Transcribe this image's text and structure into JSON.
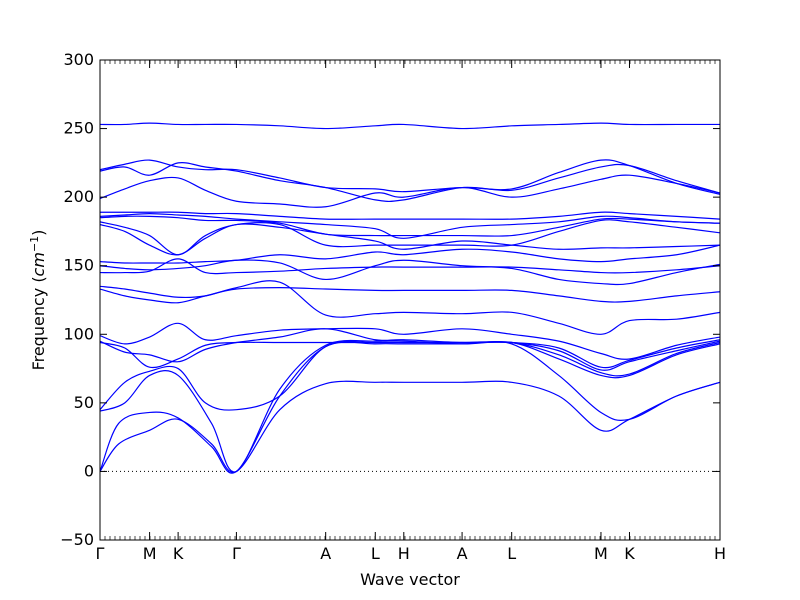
{
  "chart_data": {
    "type": "line",
    "xlabel": "Wave vector",
    "ylabel": "Frequency",
    "ylabel_unit": "cm",
    "ylabel_unit_exp": "−1",
    "ylim": [
      -50,
      300
    ],
    "yticks": [
      -50,
      0,
      50,
      100,
      150,
      200,
      250,
      300
    ],
    "x_range": [
      0,
      10
    ],
    "kpoints": [
      {
        "label": "Γ",
        "x": 0
      },
      {
        "label": "M",
        "x": 0.8
      },
      {
        "label": "K",
        "x": 1.26
      },
      {
        "label": "Γ",
        "x": 2.2
      },
      {
        "label": "A",
        "x": 3.64
      },
      {
        "label": "L",
        "x": 4.44
      },
      {
        "label": "H",
        "x": 4.9
      },
      {
        "label": "A",
        "x": 5.84
      },
      {
        "label": "L",
        "x": 6.64
      },
      {
        "label": "M",
        "x": 8.08
      },
      {
        "label": "K",
        "x": 8.54
      },
      {
        "label": "H",
        "x": 10
      }
    ],
    "zero_line": true,
    "series_color": "#0000ff",
    "bands": [
      {
        "x": [
          0,
          0.3,
          0.8,
          1.26,
          1.8,
          2.2,
          2.9,
          3.64,
          4.44,
          4.9,
          5.84,
          6.64,
          7.4,
          8.08,
          8.54,
          9.3,
          10
        ],
        "y": [
          0,
          20,
          30,
          38,
          20,
          0,
          45,
          64,
          65,
          65,
          65,
          65,
          55,
          30,
          38,
          55,
          65
        ]
      },
      {
        "x": [
          0,
          0.3,
          0.8,
          1.26,
          1.8,
          2.2,
          2.9,
          3.64,
          4.44,
          4.9,
          5.84,
          6.64,
          7.4,
          8.08,
          8.54,
          9.3,
          10
        ],
        "y": [
          0,
          35,
          43,
          39,
          18,
          0,
          55,
          91,
          93,
          93,
          93,
          93,
          70,
          43,
          38,
          55,
          65
        ]
      },
      {
        "x": [
          0,
          0.4,
          0.8,
          1.26,
          1.8,
          2.2,
          2.9,
          3.64,
          4.44,
          4.9,
          5.84,
          6.64,
          7.4,
          8.08,
          8.54,
          9.3,
          10
        ],
        "y": [
          44,
          50,
          70,
          70,
          35,
          0,
          60,
          92,
          95,
          95,
          93,
          94,
          82,
          70,
          70,
          85,
          93
        ]
      },
      {
        "x": [
          0,
          0.4,
          0.8,
          1.26,
          1.7,
          2.2,
          2.9,
          3.64,
          4.44,
          4.9,
          5.84,
          6.64,
          7.4,
          8.08,
          8.54,
          9.3,
          10
        ],
        "y": [
          45,
          65,
          73,
          75,
          50,
          45,
          55,
          91,
          94,
          94,
          94,
          94,
          85,
          72,
          71,
          86,
          94
        ]
      },
      {
        "x": [
          0,
          0.4,
          0.8,
          1.26,
          1.7,
          2.2,
          2.9,
          3.64,
          4.44,
          4.9,
          5.84,
          6.64,
          7.4,
          8.08,
          8.54,
          9.3,
          10
        ],
        "y": [
          94,
          90,
          76,
          82,
          92,
          94,
          94,
          94,
          94,
          94,
          94,
          94,
          88,
          74,
          80,
          88,
          95
        ]
      },
      {
        "x": [
          0,
          0.4,
          0.8,
          1.26,
          1.7,
          2.2,
          2.9,
          3.64,
          4.44,
          4.9,
          5.84,
          6.64,
          7.4,
          8.08,
          8.54,
          9.3,
          10
        ],
        "y": [
          95,
          87,
          85,
          80,
          89,
          94,
          98,
          104,
          96,
          96,
          94,
          94,
          90,
          76,
          81,
          90,
          96
        ]
      },
      {
        "x": [
          0,
          0.4,
          0.8,
          1.26,
          1.7,
          2.2,
          2.9,
          3.64,
          4.44,
          4.9,
          5.84,
          6.64,
          7.4,
          8.08,
          8.54,
          9.3,
          10
        ],
        "y": [
          99,
          93,
          98,
          108,
          96,
          99,
          103,
          104,
          104,
          100,
          104,
          100,
          95,
          86,
          82,
          92,
          98
        ]
      },
      {
        "x": [
          0,
          0.4,
          0.8,
          1.26,
          1.7,
          2.2,
          2.9,
          3.64,
          4.44,
          4.9,
          5.84,
          6.64,
          7.4,
          8.08,
          8.54,
          9.3,
          10
        ],
        "y": [
          133,
          128,
          125,
          123,
          128,
          133,
          134,
          133,
          132,
          132,
          132,
          132,
          128,
          124,
          124,
          128,
          131
        ]
      },
      {
        "x": [
          0,
          0.4,
          0.8,
          1.26,
          1.7,
          2.2,
          2.9,
          3.64,
          4.44,
          4.9,
          5.84,
          6.64,
          7.4,
          8.08,
          8.54,
          9.3,
          10
        ],
        "y": [
          135,
          133,
          130,
          127,
          128,
          134,
          138,
          114,
          115,
          116,
          115,
          116,
          108,
          100,
          110,
          111,
          116
        ]
      },
      {
        "x": [
          0,
          0.4,
          0.8,
          1.26,
          1.7,
          2.2,
          2.9,
          3.64,
          4.44,
          4.9,
          5.84,
          6.64,
          7.4,
          8.08,
          8.54,
          9.3,
          10
        ],
        "y": [
          145,
          145,
          146,
          155,
          145,
          145,
          146,
          148,
          149,
          149,
          149,
          149,
          147,
          145,
          145,
          147,
          150
        ]
      },
      {
        "x": [
          0,
          0.4,
          0.8,
          1.26,
          1.7,
          2.2,
          2.9,
          3.64,
          4.44,
          4.9,
          5.84,
          6.64,
          7.4,
          8.08,
          8.54,
          9.3,
          10
        ],
        "y": [
          150,
          148,
          147,
          148,
          150,
          154,
          152,
          140,
          150,
          154,
          150,
          148,
          140,
          137,
          137,
          145,
          151
        ]
      },
      {
        "x": [
          0,
          0.4,
          0.8,
          1.26,
          1.7,
          2.2,
          2.9,
          3.64,
          4.44,
          4.9,
          5.84,
          6.64,
          7.4,
          8.08,
          8.54,
          9.3,
          10
        ],
        "y": [
          153,
          152,
          152,
          152,
          153,
          154,
          158,
          155,
          160,
          158,
          162,
          160,
          155,
          153,
          155,
          158,
          165
        ]
      },
      {
        "x": [
          0,
          0.4,
          0.8,
          1.26,
          1.7,
          2.2,
          2.9,
          3.64,
          4.44,
          4.9,
          5.84,
          6.64,
          7.4,
          8.08,
          8.54,
          9.3,
          10
        ],
        "y": [
          180,
          175,
          165,
          158,
          170,
          180,
          178,
          173,
          168,
          162,
          168,
          165,
          162,
          163,
          163,
          164,
          165
        ]
      },
      {
        "x": [
          0,
          0.4,
          0.8,
          1.26,
          1.7,
          2.2,
          2.9,
          3.64,
          4.44,
          4.9,
          5.84,
          6.64,
          7.4,
          8.08,
          8.54,
          9.3,
          10
        ],
        "y": [
          182,
          178,
          172,
          158,
          172,
          180,
          180,
          165,
          165,
          165,
          165,
          165,
          175,
          183,
          182,
          178,
          174
        ]
      },
      {
        "x": [
          0,
          0.4,
          0.8,
          1.26,
          1.7,
          2.2,
          2.9,
          3.64,
          4.44,
          4.9,
          5.84,
          6.64,
          7.4,
          8.08,
          8.54,
          9.3,
          10
        ],
        "y": [
          185,
          186,
          186,
          185,
          183,
          183,
          181,
          173,
          172,
          172,
          172,
          172,
          178,
          184,
          184,
          182,
          181
        ]
      },
      {
        "x": [
          0,
          0.4,
          0.8,
          1.26,
          1.7,
          2.2,
          2.9,
          3.64,
          4.44,
          4.9,
          5.84,
          6.64,
          7.4,
          8.08,
          8.54,
          9.3,
          10
        ],
        "y": [
          186,
          187,
          188,
          187,
          186,
          184,
          182,
          180,
          177,
          170,
          178,
          180,
          182,
          186,
          185,
          182,
          181
        ]
      },
      {
        "x": [
          0,
          0.4,
          0.8,
          1.26,
          1.7,
          2.2,
          2.9,
          3.64,
          4.44,
          4.9,
          5.84,
          6.64,
          7.4,
          8.08,
          8.54,
          9.3,
          10
        ],
        "y": [
          189,
          189,
          189,
          189,
          188,
          188,
          186,
          184,
          184,
          184,
          184,
          184,
          186,
          189,
          188,
          186,
          184
        ]
      },
      {
        "x": [
          0,
          0.4,
          0.8,
          1.26,
          1.7,
          2.2,
          2.9,
          3.64,
          4.44,
          4.9,
          5.84,
          6.64,
          7.4,
          8.08,
          8.54,
          9.3,
          10
        ],
        "y": [
          199,
          206,
          212,
          214,
          205,
          197,
          195,
          193,
          203,
          200,
          207,
          200,
          206,
          213,
          216,
          210,
          203
        ]
      },
      {
        "x": [
          0,
          0.4,
          0.8,
          1.26,
          1.7,
          2.2,
          2.9,
          3.64,
          4.44,
          4.9,
          5.84,
          6.64,
          7.4,
          8.08,
          8.54,
          9.3,
          10
        ],
        "y": [
          219,
          222,
          216,
          225,
          222,
          219,
          212,
          207,
          198,
          198,
          207,
          205,
          214,
          222,
          223,
          212,
          203
        ]
      },
      {
        "x": [
          0,
          0.4,
          0.8,
          1.26,
          1.7,
          2.2,
          2.9,
          3.64,
          4.44,
          4.9,
          5.84,
          6.64,
          7.4,
          8.08,
          8.54,
          9.3,
          10
        ],
        "y": [
          220,
          224,
          227,
          222,
          220,
          220,
          214,
          207,
          206,
          204,
          207,
          206,
          218,
          227,
          223,
          210,
          202
        ]
      },
      {
        "x": [
          0,
          0.4,
          0.8,
          1.26,
          1.7,
          2.2,
          2.9,
          3.64,
          4.44,
          4.9,
          5.84,
          6.64,
          7.4,
          8.08,
          8.54,
          9.3,
          10
        ],
        "y": [
          253,
          253,
          254,
          253,
          253,
          253,
          252,
          250,
          252,
          253,
          250,
          252,
          253,
          254,
          253,
          253,
          253
        ]
      }
    ]
  }
}
